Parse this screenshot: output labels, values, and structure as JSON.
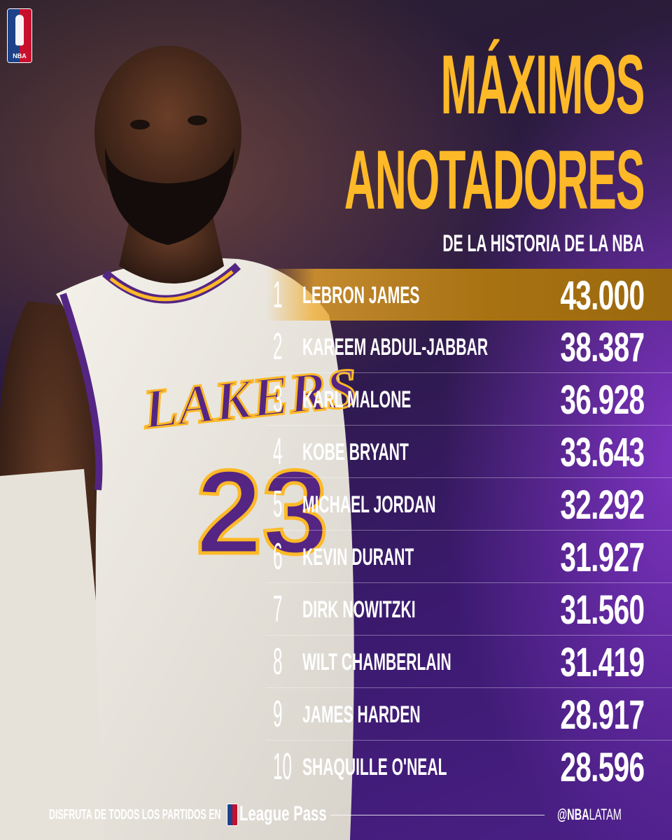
{
  "brand": {
    "logo_text": "NBA"
  },
  "header": {
    "title_line1": "MÁXIMOS",
    "title_line2": "ANOTADORES",
    "subtitle": "DE LA HISTORIA DE LA NBA"
  },
  "colors": {
    "accent": "#fdb927",
    "purple": "#552583",
    "highlight": "#a87212"
  },
  "list": [
    {
      "rank": "1",
      "name": "LEBRON JAMES",
      "points": "43.000",
      "highlighted": true
    },
    {
      "rank": "2",
      "name": "KAREEM ABDUL-JABBAR",
      "points": "38.387"
    },
    {
      "rank": "3",
      "name": "KARL MALONE",
      "points": "36.928"
    },
    {
      "rank": "4",
      "name": "KOBE BRYANT",
      "points": "33.643"
    },
    {
      "rank": "5",
      "name": "MICHAEL JORDAN",
      "points": "32.292"
    },
    {
      "rank": "6",
      "name": "KEVIN DURANT",
      "points": "31.927"
    },
    {
      "rank": "7",
      "name": "DIRK NOWITZKI",
      "points": "31.560"
    },
    {
      "rank": "8",
      "name": "WILT CHAMBERLAIN",
      "points": "31.419"
    },
    {
      "rank": "9",
      "name": "JAMES HARDEN",
      "points": "28.917"
    },
    {
      "rank": "10",
      "name": "SHAQUILLE O'NEAL",
      "points": "28.596"
    }
  ],
  "jersey": {
    "team": "LAKERS",
    "number": "23"
  },
  "footer": {
    "text": "DISFRUTA DE TODOS LOS PARTIDOS EN",
    "product": "League Pass",
    "handle_bold": "@NBA",
    "handle_rest": "LATAM"
  }
}
